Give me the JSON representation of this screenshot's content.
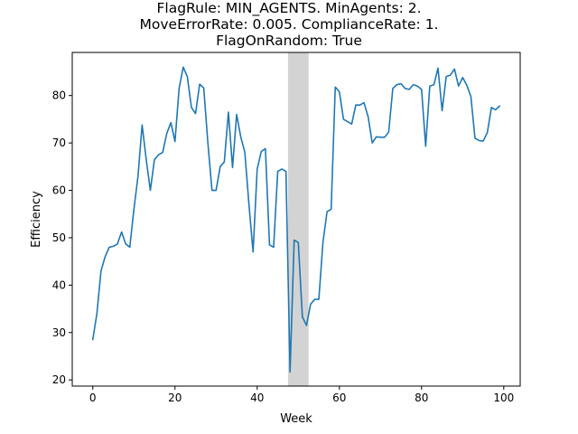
{
  "chart_data": {
    "type": "line",
    "title": [
      "FlagRule: MIN_AGENTS. MinAgents: 2.",
      "MoveErrorRate: 0.005. ComplianceRate: 1.",
      "FlagOnRandom: True"
    ],
    "xlabel": "Week",
    "ylabel": "Efficiency",
    "xlim": [
      -5,
      104
    ],
    "ylim": [
      18.7,
      89.1
    ],
    "xticks": [
      0,
      20,
      40,
      60,
      80,
      100
    ],
    "yticks": [
      20,
      30,
      40,
      50,
      60,
      70,
      80
    ],
    "grid": false,
    "shaded_region": {
      "x": [
        47.5,
        52.5
      ],
      "color": "#d3d3d3"
    },
    "series": [
      {
        "color": "#1f77b4",
        "x": [
          0,
          1,
          2,
          3,
          4,
          5,
          6,
          7,
          8,
          9,
          10,
          11,
          12,
          13,
          14,
          15,
          16,
          17,
          18,
          19,
          20,
          21,
          22,
          23,
          24,
          25,
          26,
          27,
          28,
          29,
          30,
          31,
          32,
          33,
          34,
          35,
          36,
          37,
          38,
          39,
          40,
          41,
          42,
          43,
          44,
          45,
          46,
          47,
          48,
          49,
          50,
          51,
          52,
          53,
          54,
          55,
          56,
          57,
          58,
          59,
          60,
          61,
          62,
          63,
          64,
          65,
          66,
          67,
          68,
          69,
          70,
          71,
          72,
          73,
          74,
          75,
          76,
          77,
          78,
          79,
          80,
          81,
          82,
          83,
          84,
          85,
          86,
          87,
          88,
          89,
          90,
          91,
          92,
          93,
          94,
          95,
          96,
          97,
          98,
          99
        ],
        "y": [
          28.5,
          34.0,
          43.0,
          46.0,
          48.0,
          48.2,
          48.7,
          51.2,
          48.7,
          48.0,
          56.0,
          63.0,
          73.8,
          66.5,
          60.0,
          66.5,
          67.5,
          68.0,
          72.0,
          74.3,
          70.3,
          81.5,
          86.0,
          84.0,
          77.5,
          76.2,
          82.4,
          81.6,
          70.0,
          60.0,
          60.0,
          65.0,
          66.0,
          76.5,
          64.8,
          76.0,
          71.3,
          68.0,
          57.0,
          47.0,
          64.5,
          68.2,
          68.8,
          48.5,
          48.0,
          64.0,
          64.5,
          64.0,
          21.7,
          49.5,
          49.0,
          33.3,
          31.5,
          36.0,
          37.0,
          37.0,
          49.0,
          55.5,
          56.0,
          81.8,
          80.8,
          75.0,
          74.5,
          74.0,
          78.0,
          78.0,
          78.5,
          75.5,
          70.0,
          71.3,
          71.2,
          71.2,
          72.3,
          81.5,
          82.3,
          82.5,
          81.5,
          81.3,
          82.3,
          82.0,
          81.3,
          69.3,
          82.0,
          82.3,
          85.8,
          76.8,
          84.0,
          84.3,
          85.6,
          82.0,
          83.8,
          82.2,
          79.8,
          71.0,
          70.5,
          70.4,
          72.2,
          77.5,
          77.0,
          77.8
        ]
      }
    ]
  }
}
